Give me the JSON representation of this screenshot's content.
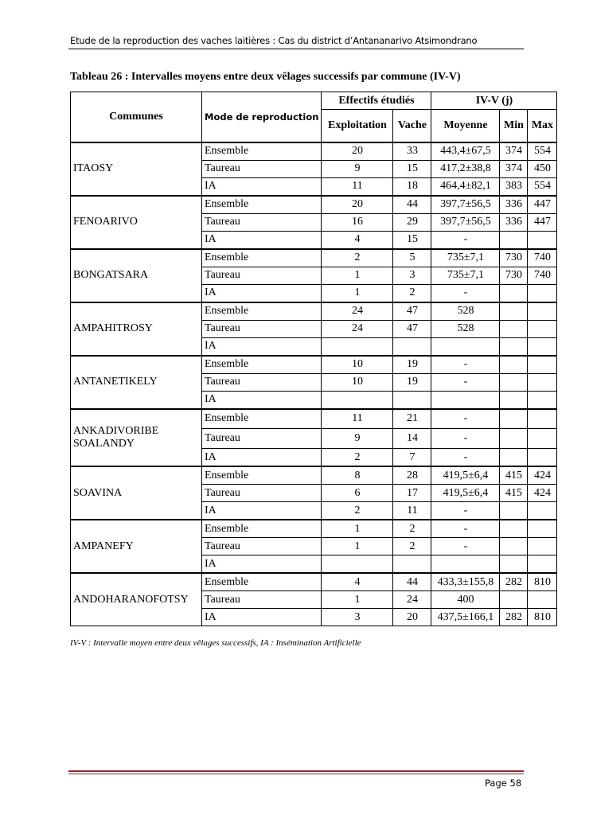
{
  "header": "Etude de la reproduction des vaches laitières : Cas du district d’Antananarivo Atsimondrano",
  "caption": "Tableau 26 : Intervalles moyens entre deux vêlages successifs par commune (IV-V)",
  "columns": {
    "communes": "Communes",
    "mode": "Mode de reproduction",
    "effectifs": "Effectifs étudiés",
    "ivv": "IV-V (j)",
    "exploitation": "Exploitation",
    "vache": "Vache",
    "moyenne": "Moyenne",
    "min": "Min",
    "max": "Max"
  },
  "groups": [
    {
      "commune": "ITAOSY",
      "rows": [
        [
          "Ensemble",
          "20",
          "33",
          "443,4±67,5",
          "374",
          "554"
        ],
        [
          "Taureau",
          "9",
          "15",
          "417,2±38,8",
          "374",
          "450"
        ],
        [
          "IA",
          "11",
          "18",
          "464,4±82,1",
          "383",
          "554"
        ]
      ]
    },
    {
      "commune": "FENOARIVO",
      "rows": [
        [
          "Ensemble",
          "20",
          "44",
          "397,7±56,5",
          "336",
          "447"
        ],
        [
          "Taureau",
          "16",
          "29",
          "397,7±56,5",
          "336",
          "447"
        ],
        [
          "IA",
          "4",
          "15",
          "-",
          "",
          ""
        ]
      ]
    },
    {
      "commune": "BONGATSARA",
      "rows": [
        [
          "Ensemble",
          "2",
          "5",
          "735±7,1",
          "730",
          "740"
        ],
        [
          "Taureau",
          "1",
          "3",
          "735±7,1",
          "730",
          "740"
        ],
        [
          "IA",
          "1",
          "2",
          "-",
          "",
          ""
        ]
      ]
    },
    {
      "commune": "AMPAHITROSY",
      "rows": [
        [
          "Ensemble",
          "24",
          "47",
          "528",
          "",
          ""
        ],
        [
          "Taureau",
          "24",
          "47",
          "528",
          "",
          ""
        ],
        [
          "IA",
          "",
          "",
          "",
          "",
          ""
        ]
      ]
    },
    {
      "commune": "ANTANETIKELY",
      "rows": [
        [
          "Ensemble",
          "10",
          "19",
          "-",
          "",
          ""
        ],
        [
          "Taureau",
          "10",
          "19",
          "-",
          "",
          ""
        ],
        [
          "IA",
          "",
          "",
          "",
          "",
          ""
        ]
      ]
    },
    {
      "commune": "ANKADIVORIBE SOALANDY",
      "rows": [
        [
          "Ensemble",
          "11",
          "21",
          "-",
          "",
          ""
        ],
        [
          "Taureau",
          "9",
          "14",
          "-",
          "",
          ""
        ],
        [
          "IA",
          "2",
          "7",
          "-",
          "",
          ""
        ]
      ]
    },
    {
      "commune": "SOAVINA",
      "rows": [
        [
          "Ensemble",
          "8",
          "28",
          "419,5±6,4",
          "415",
          "424"
        ],
        [
          "Taureau",
          "6",
          "17",
          "419,5±6,4",
          "415",
          "424"
        ],
        [
          "IA",
          "2",
          "11",
          "-",
          "",
          ""
        ]
      ]
    },
    {
      "commune": "AMPANEFY",
      "rows": [
        [
          "Ensemble",
          "1",
          "2",
          "-",
          "",
          ""
        ],
        [
          "Taureau",
          "1",
          "2",
          "-",
          "",
          ""
        ],
        [
          "IA",
          "",
          "",
          "",
          "",
          ""
        ]
      ]
    },
    {
      "commune": "ANDOHARANOFOTSY",
      "rows": [
        [
          "Ensemble",
          "4",
          "44",
          "433,3±155,8",
          "282",
          "810"
        ],
        [
          "Taureau",
          "1",
          "24",
          "400",
          "",
          ""
        ],
        [
          "IA",
          "3",
          "20",
          "437,5±166,1",
          "282",
          "810"
        ]
      ]
    }
  ],
  "note": "IV-V : Intervalle moyen entre deux vêlages successifs, IA : Insémination Artificielle",
  "page": "Page 58"
}
